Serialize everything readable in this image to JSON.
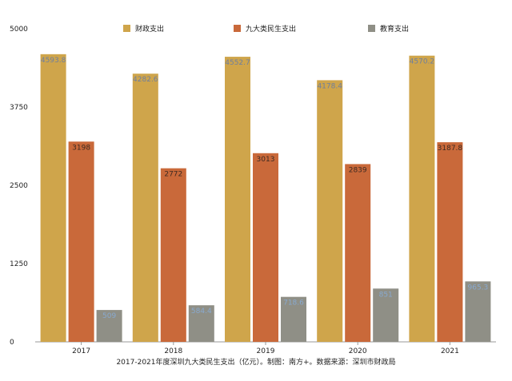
{
  "chart_data": {
    "type": "bar",
    "categories": [
      "2017",
      "2018",
      "2019",
      "2020",
      "2021"
    ],
    "series": [
      {
        "name": "财政支出",
        "color": "#cfa54b",
        "label_color": "#6f7f9e",
        "values": [
          4593.8,
          4282.6,
          4552.7,
          4178.4,
          4570.2
        ]
      },
      {
        "name": "九大类民生支出",
        "color": "#c9693a",
        "label_color": "#3e2a22",
        "values": [
          3198,
          2772,
          3013,
          2839,
          3187.8
        ]
      },
      {
        "name": "教育支出",
        "color": "#8f8f86",
        "label_color": "#88a9cf",
        "values": [
          509,
          584.4,
          718.6,
          851,
          965.3
        ]
      }
    ],
    "data_labels": [
      [
        "4593.8",
        "4282.6",
        "4552.7",
        "4178.4",
        "4570.2"
      ],
      [
        "3198",
        "2772",
        "3013",
        "2839",
        "3187.8"
      ],
      [
        "509",
        "584.4",
        "718.6",
        "851",
        "965.3"
      ]
    ],
    "yticks": [
      "0",
      "1250",
      "2500",
      "3750",
      "5000"
    ],
    "ylim": [
      0,
      5000
    ],
    "legend_position": "top-center",
    "caption": "2017-2021年度深圳九大类民生支出（亿元）。制图：南方+。数据来源：深圳市财政局"
  }
}
